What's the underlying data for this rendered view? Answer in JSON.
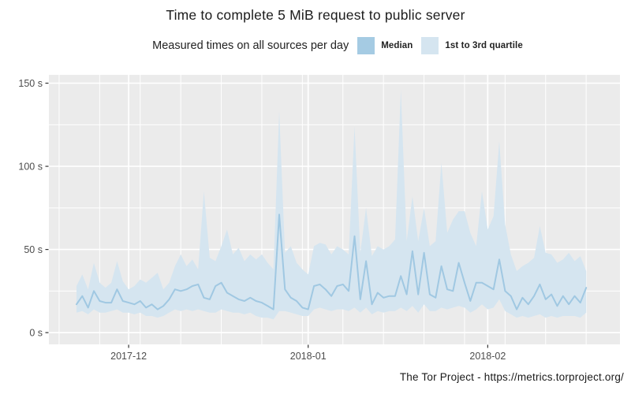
{
  "page": {
    "title": "Time to complete 5 MiB request to public server",
    "footer": "The Tor Project - https://metrics.torproject.org/"
  },
  "legend": {
    "context_label": "Measured times on all sources per day",
    "items": [
      {
        "label": "Median",
        "color": "#a5cbe3"
      },
      {
        "label": "1st to 3rd quartile",
        "color": "#d5e5f0"
      }
    ]
  },
  "chart_data": {
    "type": "area",
    "title": "Time to complete 5 MiB request to public server",
    "subtitle": "Measured times on all sources per day",
    "xlabel": "",
    "ylabel": "",
    "unit": "seconds",
    "grid": "on",
    "legend_position": "top",
    "ylim": [
      -7,
      155
    ],
    "y_ticks": [
      0,
      50,
      100,
      150
    ],
    "y_tick_labels": [
      "0 s",
      "50 s",
      "100 s",
      "150 s"
    ],
    "y_minor_ticks": [
      25,
      75,
      125
    ],
    "x_ticks": [
      {
        "index": 9,
        "label": "2017-12"
      },
      {
        "index": 40,
        "label": "2018-01"
      },
      {
        "index": 71,
        "label": "2018-02"
      }
    ],
    "x_minor_indices": [
      -3,
      4,
      11,
      18,
      25,
      32,
      39,
      46,
      53,
      60,
      67,
      74,
      81,
      88
    ],
    "colors": {
      "panel": "#ebebeb",
      "grid": "#ffffff",
      "band": "#d5e5f0",
      "line": "#a0c8e2",
      "tick_mark": "#333333",
      "tick_text": "#4d4d4d"
    },
    "x_dates": [
      "2017-11-22",
      "2017-11-23",
      "2017-11-24",
      "2017-11-25",
      "2017-11-26",
      "2017-11-27",
      "2017-11-28",
      "2017-11-29",
      "2017-11-30",
      "2017-12-01",
      "2017-12-02",
      "2017-12-03",
      "2017-12-04",
      "2017-12-05",
      "2017-12-06",
      "2017-12-07",
      "2017-12-08",
      "2017-12-09",
      "2017-12-10",
      "2017-12-11",
      "2017-12-12",
      "2017-12-13",
      "2017-12-14",
      "2017-12-15",
      "2017-12-16",
      "2017-12-17",
      "2017-12-18",
      "2017-12-19",
      "2017-12-20",
      "2017-12-21",
      "2017-12-22",
      "2017-12-23",
      "2017-12-24",
      "2017-12-25",
      "2017-12-26",
      "2017-12-27",
      "2017-12-28",
      "2017-12-29",
      "2017-12-30",
      "2017-12-31",
      "2018-01-01",
      "2018-01-02",
      "2018-01-03",
      "2018-01-04",
      "2018-01-05",
      "2018-01-06",
      "2018-01-07",
      "2018-01-08",
      "2018-01-09",
      "2018-01-10",
      "2018-01-11",
      "2018-01-12",
      "2018-01-13",
      "2018-01-14",
      "2018-01-15",
      "2018-01-16",
      "2018-01-17",
      "2018-01-18",
      "2018-01-19",
      "2018-01-20",
      "2018-01-21",
      "2018-01-22",
      "2018-01-23",
      "2018-01-24",
      "2018-01-25",
      "2018-01-26",
      "2018-01-27",
      "2018-01-28",
      "2018-01-29",
      "2018-01-30",
      "2018-01-31",
      "2018-02-01",
      "2018-02-02",
      "2018-02-03",
      "2018-02-04",
      "2018-02-05",
      "2018-02-06",
      "2018-02-07",
      "2018-02-08",
      "2018-02-09",
      "2018-02-10",
      "2018-02-11",
      "2018-02-12",
      "2018-02-13",
      "2018-02-14",
      "2018-02-15",
      "2018-02-16",
      "2018-02-17",
      "2018-02-18"
    ],
    "series": [
      {
        "name": "Median",
        "values": [
          17,
          22,
          15,
          25,
          19,
          18,
          18,
          26,
          19,
          18,
          17,
          19,
          15,
          17,
          14,
          16,
          20,
          26,
          25,
          26,
          28,
          29,
          21,
          20,
          28,
          30,
          24,
          22,
          20,
          19,
          21,
          19,
          18,
          16,
          14,
          71,
          26,
          21,
          19,
          15,
          14,
          28,
          29,
          26,
          22,
          28,
          29,
          25,
          58,
          20,
          43,
          17,
          24,
          21,
          22,
          22,
          34,
          23,
          49,
          23,
          48,
          23,
          21,
          40,
          26,
          25,
          42,
          30,
          19,
          30,
          30,
          28,
          26,
          44,
          25,
          22,
          14,
          21,
          17,
          22,
          29,
          20,
          23,
          16,
          22,
          17,
          22,
          18,
          27
        ]
      },
      {
        "name": "1st quartile",
        "values": [
          12,
          13,
          11,
          14,
          12,
          12,
          13,
          14,
          12,
          12,
          11,
          12,
          10,
          10,
          9,
          10,
          12,
          14,
          13,
          14,
          13,
          14,
          13,
          12,
          12,
          14,
          13,
          12,
          12,
          11,
          12,
          10,
          9,
          9,
          8,
          13,
          13,
          12,
          11,
          10,
          10,
          14,
          15,
          14,
          13,
          14,
          14,
          13,
          15,
          12,
          15,
          11,
          13,
          12,
          13,
          13,
          15,
          13,
          16,
          12,
          17,
          13,
          13,
          15,
          14,
          15,
          16,
          15,
          12,
          14,
          17,
          14,
          15,
          20,
          13,
          11,
          9,
          10,
          9,
          10,
          11,
          9,
          10,
          9,
          10,
          10,
          10,
          9,
          12
        ]
      },
      {
        "name": "3rd quartile",
        "values": [
          28,
          35,
          26,
          42,
          30,
          27,
          30,
          43,
          31,
          26,
          28,
          32,
          30,
          33,
          36,
          26,
          30,
          40,
          47,
          40,
          44,
          38,
          85,
          45,
          43,
          52,
          62,
          47,
          51,
          43,
          47,
          44,
          47,
          42,
          38,
          133,
          48,
          52,
          42,
          38,
          35,
          52,
          54,
          53,
          47,
          52,
          50,
          47,
          124,
          48,
          75,
          46,
          52,
          50,
          52,
          56,
          146,
          55,
          82,
          55,
          75,
          52,
          55,
          102,
          60,
          68,
          73,
          73,
          60,
          52,
          85,
          62,
          70,
          115,
          65,
          47,
          37,
          40,
          42,
          45,
          64,
          48,
          47,
          42,
          44,
          48,
          43,
          46,
          37
        ]
      }
    ]
  }
}
